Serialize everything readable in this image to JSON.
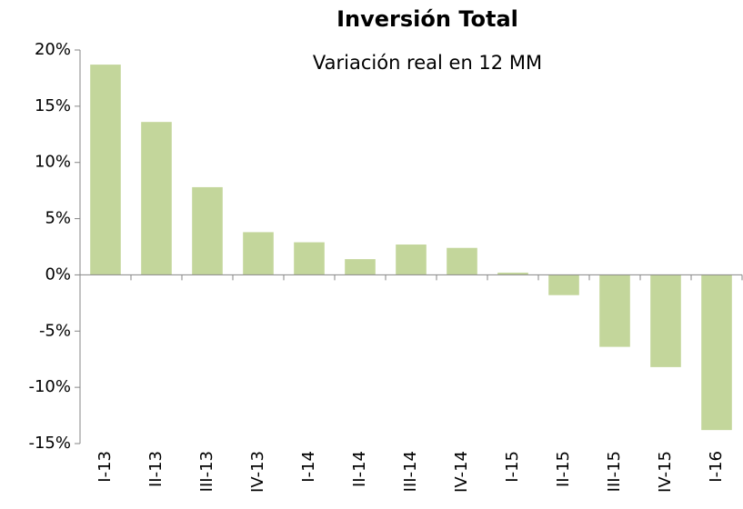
{
  "chart_data": {
    "type": "bar",
    "title": "Inversión Total",
    "subtitle": "Variación real en 12 MM",
    "categories": [
      "I-13",
      "II-13",
      "III-13",
      "IV-13",
      "I-14",
      "II-14",
      "III-14",
      "IV-14",
      "I-15",
      "II-15",
      "III-15",
      "IV-15",
      "I-16"
    ],
    "values": [
      18.7,
      13.6,
      7.8,
      3.8,
      2.9,
      1.4,
      2.7,
      2.4,
      0.2,
      -1.8,
      -6.4,
      -8.2,
      -13.8
    ],
    "color": "#c3d69b",
    "ylim": [
      -15,
      20
    ],
    "yticks": [
      {
        "value": -15,
        "label": "-15%"
      },
      {
        "value": -10,
        "label": "-10%"
      },
      {
        "value": -5,
        "label": "-5%"
      },
      {
        "value": 0,
        "label": "0%"
      },
      {
        "value": 5,
        "label": "5%"
      },
      {
        "value": 10,
        "label": "10%"
      },
      {
        "value": 15,
        "label": "15%"
      },
      {
        "value": 20,
        "label": "20%"
      }
    ],
    "grid": false
  }
}
